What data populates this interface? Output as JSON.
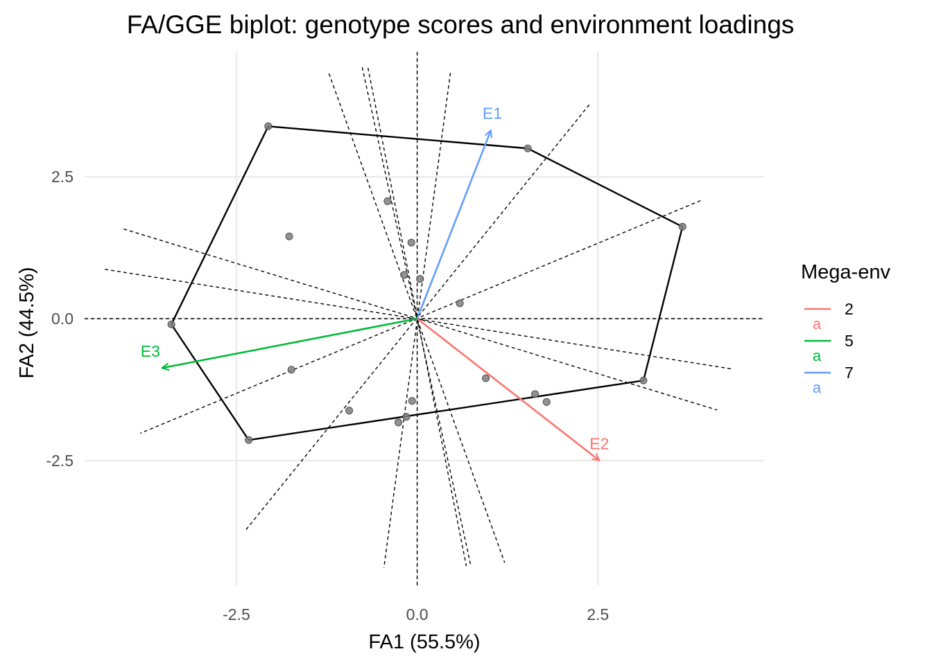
{
  "chart_data": {
    "type": "scatter",
    "title": "FA/GGE biplot: genotype scores and environment loadings",
    "xlabel": "FA1 (55.5%)",
    "ylabel": "FA2 (44.5%)",
    "xlim": [
      -4.6,
      4.8
    ],
    "ylim": [
      -4.7,
      4.7
    ],
    "x_ticks": [
      -2.5,
      0.0,
      2.5
    ],
    "x_tick_labels": [
      "-2.5",
      "0.0",
      "2.5"
    ],
    "y_ticks": [
      -2.5,
      0.0,
      2.5
    ],
    "y_tick_labels": [
      "-2.5",
      "0.0",
      "2.5"
    ],
    "grid": true,
    "genotypes": [
      {
        "x": -2.06,
        "y": 3.39
      },
      {
        "x": 1.53,
        "y": 3.0
      },
      {
        "x": 3.67,
        "y": 1.62
      },
      {
        "x": 3.13,
        "y": -1.09
      },
      {
        "x": -2.33,
        "y": -2.14
      },
      {
        "x": -3.4,
        "y": -0.1
      },
      {
        "x": -0.41,
        "y": 2.07
      },
      {
        "x": -1.77,
        "y": 1.45
      },
      {
        "x": -0.08,
        "y": 1.34
      },
      {
        "x": -0.18,
        "y": 0.77
      },
      {
        "x": 0.04,
        "y": 0.7
      },
      {
        "x": 0.59,
        "y": 0.27
      },
      {
        "x": -1.74,
        "y": -0.9
      },
      {
        "x": 0.95,
        "y": -1.05
      },
      {
        "x": 1.63,
        "y": -1.33
      },
      {
        "x": 1.79,
        "y": -1.47
      },
      {
        "x": -0.07,
        "y": -1.45
      },
      {
        "x": -0.94,
        "y": -1.62
      },
      {
        "x": -0.15,
        "y": -1.73
      },
      {
        "x": -0.26,
        "y": -1.83
      }
    ],
    "hull_vertices": [
      {
        "x": -2.06,
        "y": 3.39
      },
      {
        "x": 1.53,
        "y": 3.0
      },
      {
        "x": 3.67,
        "y": 1.62
      },
      {
        "x": 3.13,
        "y": -1.09
      },
      {
        "x": -2.33,
        "y": -2.14
      },
      {
        "x": -3.4,
        "y": -0.1
      }
    ],
    "sector_lines": [
      {
        "x1": -1.22,
        "y1": 4.32,
        "x2": 1.21,
        "y2": -4.3
      },
      {
        "x1": -0.76,
        "y1": 4.43,
        "x2": 0.74,
        "y2": -4.34
      },
      {
        "x1": -0.68,
        "y1": 4.42,
        "x2": 0.68,
        "y2": -4.36
      },
      {
        "x1": 0.46,
        "y1": 4.33,
        "x2": -0.46,
        "y2": -4.39
      },
      {
        "x1": 2.38,
        "y1": 3.77,
        "x2": -2.38,
        "y2": -3.74
      },
      {
        "x1": 3.92,
        "y1": 2.08,
        "x2": -3.83,
        "y2": -2.02
      },
      {
        "x1": -4.06,
        "y1": 1.58,
        "x2": 4.15,
        "y2": -1.61
      },
      {
        "x1": -4.32,
        "y1": 0.87,
        "x2": 4.37,
        "y2": -0.89
      }
    ],
    "environments": [
      {
        "name": "E1",
        "x": 1.02,
        "y": 3.32,
        "mega_env": "7",
        "color": "#619CFF",
        "label_dx": 0.02,
        "label_dy": 0.2
      },
      {
        "name": "E2",
        "x": 2.52,
        "y": -2.5,
        "mega_env": "2",
        "color": "#F8766D",
        "label_dx": 0.0,
        "label_dy": 0.2
      },
      {
        "name": "E3",
        "x": -3.53,
        "y": -0.87,
        "mega_env": "5",
        "color": "#00BA38",
        "label_dx": -0.16,
        "label_dy": 0.2
      }
    ],
    "legend": {
      "title": "Mega-env",
      "position": "right",
      "entries": [
        {
          "label": "2",
          "color": "#F8766D",
          "key_text": "a"
        },
        {
          "label": "5",
          "color": "#00BA38",
          "key_text": "a"
        },
        {
          "label": "7",
          "color": "#619CFF",
          "key_text": "a"
        }
      ]
    },
    "colors": {
      "grid": "#ebebeb",
      "hull": "#000000",
      "point": "#7f7f7f",
      "point_stroke": "#4d4d4d",
      "reference_lines": "#000000"
    }
  }
}
